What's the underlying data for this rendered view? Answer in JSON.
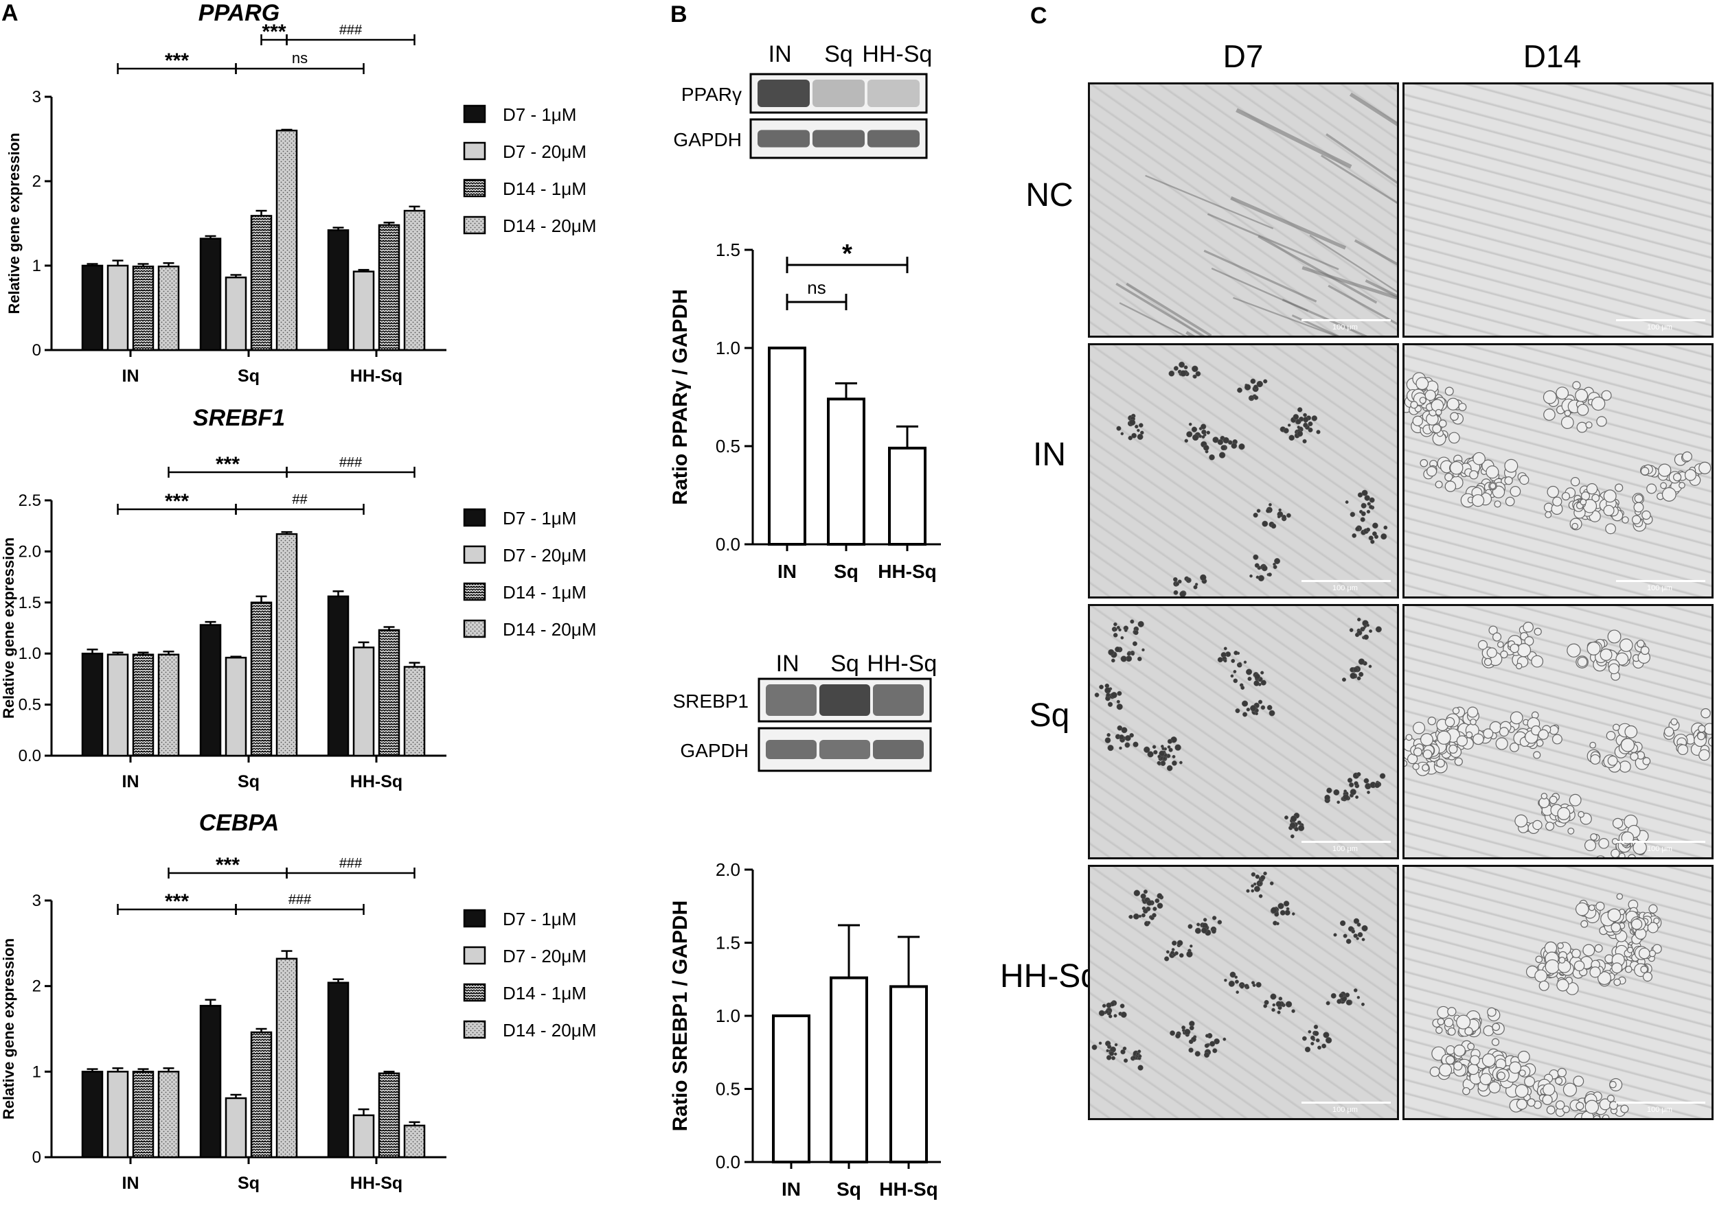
{
  "panels": {
    "A": "A",
    "B": "B",
    "C": "C"
  },
  "legend_items": [
    "D7 - 1μM",
    "D7 - 20μM",
    "D14 - 1μM",
    "D14 - 20μM"
  ],
  "chart_data": [
    {
      "id": "pparg",
      "type": "bar",
      "title": "PPARG",
      "ylabel": "Relative gene expression",
      "ylim": [
        0,
        3
      ],
      "yticks": [
        "0",
        "1",
        "2",
        "3"
      ],
      "categories": [
        "IN",
        "Sq",
        "HH-Sq"
      ],
      "series": [
        {
          "name": "D7 - 1μM",
          "values": [
            1.0,
            1.32,
            1.42
          ],
          "errors": [
            0.02,
            0.03,
            0.03
          ]
        },
        {
          "name": "D7 - 20μM",
          "values": [
            1.0,
            0.86,
            0.93
          ],
          "errors": [
            0.06,
            0.03,
            0.02
          ]
        },
        {
          "name": "D14 - 1μM",
          "values": [
            0.99,
            1.59,
            1.48
          ],
          "errors": [
            0.03,
            0.06,
            0.03
          ]
        },
        {
          "name": "D14 - 20μM",
          "values": [
            0.99,
            2.6,
            1.65
          ],
          "errors": [
            0.04,
            0.01,
            0.05
          ]
        }
      ],
      "annotations": [
        {
          "text": "***",
          "from": "Sq-D14-20",
          "to": "Sq-D14-1"
        },
        {
          "text": "###",
          "from": "Sq-D14-20",
          "to": "HH-D14-20"
        },
        {
          "text": "***",
          "from": "IN-D7-20",
          "to": "Sq-D7-20"
        },
        {
          "text": "ns",
          "from": "Sq-D7-20",
          "to": "HH-D7-20"
        }
      ]
    },
    {
      "id": "srebf1",
      "type": "bar",
      "title": "SREBF1",
      "ylabel": "Relative gene expression",
      "ylim": [
        0,
        2.5
      ],
      "yticks": [
        "0.0",
        "0.5",
        "1.0",
        "1.5",
        "2.0",
        "2.5"
      ],
      "categories": [
        "IN",
        "Sq",
        "HH-Sq"
      ],
      "series": [
        {
          "name": "D7 - 1μM",
          "values": [
            1.0,
            1.28,
            1.56
          ],
          "errors": [
            0.04,
            0.03,
            0.05
          ]
        },
        {
          "name": "D7 - 20μM",
          "values": [
            0.99,
            0.96,
            1.06
          ],
          "errors": [
            0.02,
            0.01,
            0.05
          ]
        },
        {
          "name": "D14 - 1μM",
          "values": [
            0.99,
            1.5,
            1.23
          ],
          "errors": [
            0.02,
            0.06,
            0.03
          ]
        },
        {
          "name": "D14 - 20μM",
          "values": [
            0.99,
            2.17,
            0.87
          ],
          "errors": [
            0.03,
            0.02,
            0.04
          ]
        }
      ],
      "annotations": [
        {
          "text": "***",
          "from": "IN-D14-20",
          "to": "Sq-D14-20"
        },
        {
          "text": "###",
          "from": "Sq-D14-20",
          "to": "HH-D14-20"
        },
        {
          "text": "***",
          "from": "IN-D7-20",
          "to": "Sq-D7-20"
        },
        {
          "text": "##",
          "from": "Sq-D7-20",
          "to": "HH-D7-20"
        }
      ]
    },
    {
      "id": "cebpa",
      "type": "bar",
      "title": "CEBPA",
      "ylabel": "Relative gene expression",
      "ylim": [
        0,
        3
      ],
      "yticks": [
        "0",
        "1",
        "2",
        "3"
      ],
      "categories": [
        "IN",
        "Sq",
        "HH-Sq"
      ],
      "series": [
        {
          "name": "D7 - 1μM",
          "values": [
            1.0,
            1.77,
            2.04
          ],
          "errors": [
            0.03,
            0.07,
            0.04
          ]
        },
        {
          "name": "D7 - 20μM",
          "values": [
            1.0,
            0.69,
            0.49
          ],
          "errors": [
            0.04,
            0.04,
            0.07
          ]
        },
        {
          "name": "D14 - 1μM",
          "values": [
            1.0,
            1.46,
            0.98
          ],
          "errors": [
            0.03,
            0.04,
            0.02
          ]
        },
        {
          "name": "D14 - 20μM",
          "values": [
            1.0,
            2.32,
            0.37
          ],
          "errors": [
            0.04,
            0.09,
            0.04
          ]
        }
      ],
      "annotations": [
        {
          "text": "***",
          "from": "IN-D14-20",
          "to": "Sq-D14-20"
        },
        {
          "text": "###",
          "from": "Sq-D14-20",
          "to": "HH-D14-20"
        },
        {
          "text": "***",
          "from": "IN-D7-20",
          "to": "Sq-D7-20"
        },
        {
          "text": "###",
          "from": "Sq-D7-20",
          "to": "HH-D7-20"
        }
      ]
    },
    {
      "id": "ratio-ppar",
      "type": "bar",
      "ylabel": "Ratio PPARγ / GAPDH",
      "ylim": [
        0,
        1.5
      ],
      "yticks": [
        "0.0",
        "0.5",
        "1.0",
        "1.5"
      ],
      "categories": [
        "IN",
        "Sq",
        "HH-Sq"
      ],
      "values": [
        1.0,
        0.74,
        0.49
      ],
      "errors": [
        0,
        0.08,
        0.11
      ],
      "annotations": [
        {
          "text": "*",
          "from": "IN",
          "to": "HH-Sq"
        },
        {
          "text": "ns",
          "from": "IN",
          "to": "Sq"
        }
      ]
    },
    {
      "id": "ratio-srebp1",
      "type": "bar",
      "ylabel": "Ratio SREBP1 / GAPDH",
      "ylim": [
        0,
        2.0
      ],
      "yticks": [
        "0.0",
        "0.5",
        "1.0",
        "1.5",
        "2.0"
      ],
      "categories": [
        "IN",
        "Sq",
        "HH-Sq"
      ],
      "values": [
        1.0,
        1.26,
        1.2
      ],
      "errors": [
        0,
        0.36,
        0.34
      ],
      "annotations": []
    }
  ],
  "blots": [
    {
      "id": "blot-ppar",
      "lanes": [
        "IN",
        "Sq",
        "HH-Sq"
      ],
      "rows": [
        {
          "label": "PPARγ",
          "intensity": [
            0.9,
            0.35,
            0.3
          ]
        },
        {
          "label": "GAPDH",
          "intensity": [
            0.75,
            0.75,
            0.75
          ]
        }
      ]
    },
    {
      "id": "blot-srebp",
      "lanes": [
        "IN",
        "Sq",
        "HH-Sq"
      ],
      "rows": [
        {
          "label": "SREBP1",
          "intensity": [
            0.7,
            0.92,
            0.72
          ]
        },
        {
          "label": "GAPDH",
          "intensity": [
            0.72,
            0.7,
            0.74
          ]
        }
      ]
    }
  ],
  "micrographs": {
    "columns": [
      "D7",
      "D14"
    ],
    "rows": [
      "NC",
      "IN",
      "Sq",
      "HH-Sq"
    ],
    "scale_label": "100 μm"
  }
}
